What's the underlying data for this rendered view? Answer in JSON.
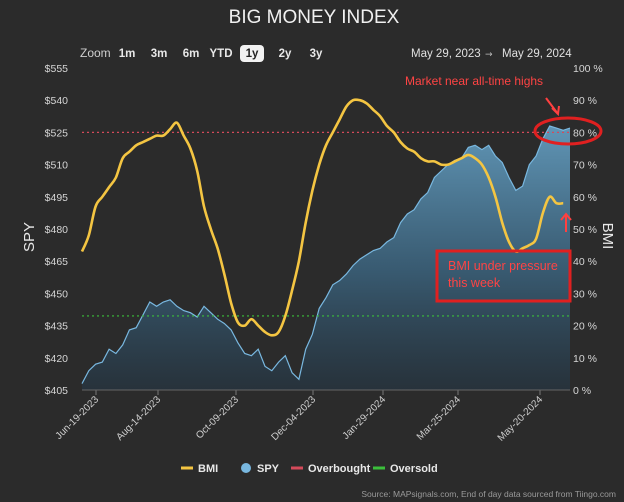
{
  "chart_data": {
    "type": "line",
    "title": "BIG MONEY INDEX",
    "ylabel_left": "SPY",
    "ylabel_right": "BMI",
    "left_axis": {
      "ticks": [
        "$405",
        "$420",
        "$435",
        "$450",
        "$465",
        "$480",
        "$495",
        "$510",
        "$525",
        "$540",
        "$555"
      ],
      "range": [
        405,
        555
      ]
    },
    "right_axis": {
      "ticks": [
        "0 %",
        "10 %",
        "20 %",
        "30 %",
        "40 %",
        "50 %",
        "60 %",
        "70 %",
        "80 %",
        "90 %",
        "100 %"
      ],
      "range": [
        0,
        100
      ]
    },
    "x_ticks": [
      "Jun-19-2023",
      "Aug-14-2023",
      "Oct-09-2023",
      "Dec-04-2023",
      "Jan-29-2024",
      "Mar-25-2024",
      "May-20-2024"
    ],
    "zoom": {
      "label": "Zoom",
      "options": [
        "1m",
        "3m",
        "6m",
        "YTD",
        "1y",
        "2y",
        "3y"
      ],
      "selected": "1y"
    },
    "date_range": {
      "start": "May 29, 2023",
      "arrow": "→",
      "end": "May 29, 2024"
    },
    "overbought_level": 80,
    "oversold_level": 23,
    "series": [
      {
        "name": "SPY",
        "color": "#79b8e0",
        "axis": "left",
        "points": [
          [
            0,
            408
          ],
          [
            2,
            414
          ],
          [
            4,
            417
          ],
          [
            6,
            418
          ],
          [
            8,
            424
          ],
          [
            10,
            422
          ],
          [
            12,
            426
          ],
          [
            14,
            433
          ],
          [
            16,
            434
          ],
          [
            18,
            440
          ],
          [
            20,
            446
          ],
          [
            22,
            444
          ],
          [
            24,
            446
          ],
          [
            26,
            447
          ],
          [
            28,
            444
          ],
          [
            30,
            442
          ],
          [
            32,
            441
          ],
          [
            34,
            439
          ],
          [
            36,
            444
          ],
          [
            38,
            441
          ],
          [
            40,
            438
          ],
          [
            42,
            436
          ],
          [
            44,
            433
          ],
          [
            46,
            427
          ],
          [
            48,
            422
          ],
          [
            50,
            421
          ],
          [
            52,
            424
          ],
          [
            54,
            416
          ],
          [
            56,
            414
          ],
          [
            58,
            418
          ],
          [
            60,
            421
          ],
          [
            62,
            413
          ],
          [
            64,
            410
          ],
          [
            66,
            424
          ],
          [
            68,
            431
          ],
          [
            70,
            443
          ],
          [
            72,
            448
          ],
          [
            74,
            454
          ],
          [
            76,
            456
          ],
          [
            78,
            459
          ],
          [
            80,
            463
          ],
          [
            82,
            466
          ],
          [
            84,
            468
          ],
          [
            86,
            470
          ],
          [
            88,
            471
          ],
          [
            90,
            474
          ],
          [
            92,
            476
          ],
          [
            94,
            483
          ],
          [
            96,
            487
          ],
          [
            98,
            489
          ],
          [
            100,
            494
          ],
          [
            102,
            497
          ],
          [
            104,
            504
          ],
          [
            106,
            507
          ],
          [
            108,
            510
          ],
          [
            110,
            512
          ],
          [
            112,
            513
          ],
          [
            114,
            518
          ],
          [
            116,
            519
          ],
          [
            118,
            517
          ],
          [
            120,
            519
          ],
          [
            122,
            514
          ],
          [
            124,
            511
          ],
          [
            126,
            504
          ],
          [
            128,
            498
          ],
          [
            130,
            500
          ],
          [
            132,
            510
          ],
          [
            134,
            514
          ],
          [
            136,
            522
          ],
          [
            138,
            528
          ],
          [
            140,
            527
          ],
          [
            142,
            526
          ],
          [
            144,
            527
          ]
        ]
      },
      {
        "name": "BMI",
        "color": "#f4c542",
        "axis": "right",
        "points": [
          [
            0,
            43
          ],
          [
            2,
            48
          ],
          [
            4,
            57
          ],
          [
            6,
            60
          ],
          [
            8,
            63
          ],
          [
            10,
            66
          ],
          [
            12,
            72
          ],
          [
            14,
            74
          ],
          [
            16,
            76
          ],
          [
            18,
            77
          ],
          [
            20,
            78
          ],
          [
            22,
            79
          ],
          [
            24,
            79
          ],
          [
            26,
            81
          ],
          [
            28,
            83
          ],
          [
            30,
            79
          ],
          [
            32,
            75
          ],
          [
            34,
            68
          ],
          [
            36,
            57
          ],
          [
            38,
            50
          ],
          [
            40,
            44
          ],
          [
            42,
            36
          ],
          [
            44,
            27
          ],
          [
            46,
            21
          ],
          [
            48,
            20
          ],
          [
            50,
            22
          ],
          [
            52,
            20
          ],
          [
            54,
            18
          ],
          [
            56,
            17
          ],
          [
            58,
            18
          ],
          [
            60,
            23
          ],
          [
            62,
            31
          ],
          [
            64,
            40
          ],
          [
            66,
            52
          ],
          [
            68,
            62
          ],
          [
            70,
            70
          ],
          [
            72,
            76
          ],
          [
            74,
            80
          ],
          [
            76,
            84
          ],
          [
            78,
            88
          ],
          [
            80,
            90
          ],
          [
            82,
            90
          ],
          [
            84,
            89
          ],
          [
            86,
            87
          ],
          [
            88,
            85
          ],
          [
            90,
            82
          ],
          [
            92,
            80
          ],
          [
            94,
            77
          ],
          [
            96,
            75
          ],
          [
            98,
            74
          ],
          [
            100,
            72
          ],
          [
            102,
            71
          ],
          [
            104,
            71
          ],
          [
            106,
            70
          ],
          [
            108,
            70
          ],
          [
            110,
            71
          ],
          [
            112,
            72
          ],
          [
            114,
            73
          ],
          [
            116,
            72
          ],
          [
            118,
            70
          ],
          [
            120,
            66
          ],
          [
            122,
            60
          ],
          [
            124,
            52
          ],
          [
            126,
            46
          ],
          [
            128,
            43
          ],
          [
            130,
            44
          ],
          [
            132,
            45
          ],
          [
            134,
            47
          ],
          [
            136,
            55
          ],
          [
            138,
            60
          ],
          [
            140,
            58
          ],
          [
            142,
            58
          ]
        ]
      }
    ],
    "legend": [
      {
        "label": "BMI",
        "color": "#f4c542",
        "type": "line"
      },
      {
        "label": "SPY",
        "color": "#79b8e0",
        "type": "dot"
      },
      {
        "label": "Overbought",
        "color": "#d44a5a",
        "type": "line"
      },
      {
        "label": "Oversold",
        "color": "#3bbf3b",
        "type": "line"
      }
    ],
    "annotations": [
      {
        "text": "Market near all-time highs",
        "color": "#ff3b3b"
      },
      {
        "text_lines": [
          "BMI under pressure",
          "this week"
        ],
        "color": "#ff3b3b"
      }
    ],
    "source": "Source: MAPsignals.com, End of day data sourced from Tiingo.com"
  }
}
